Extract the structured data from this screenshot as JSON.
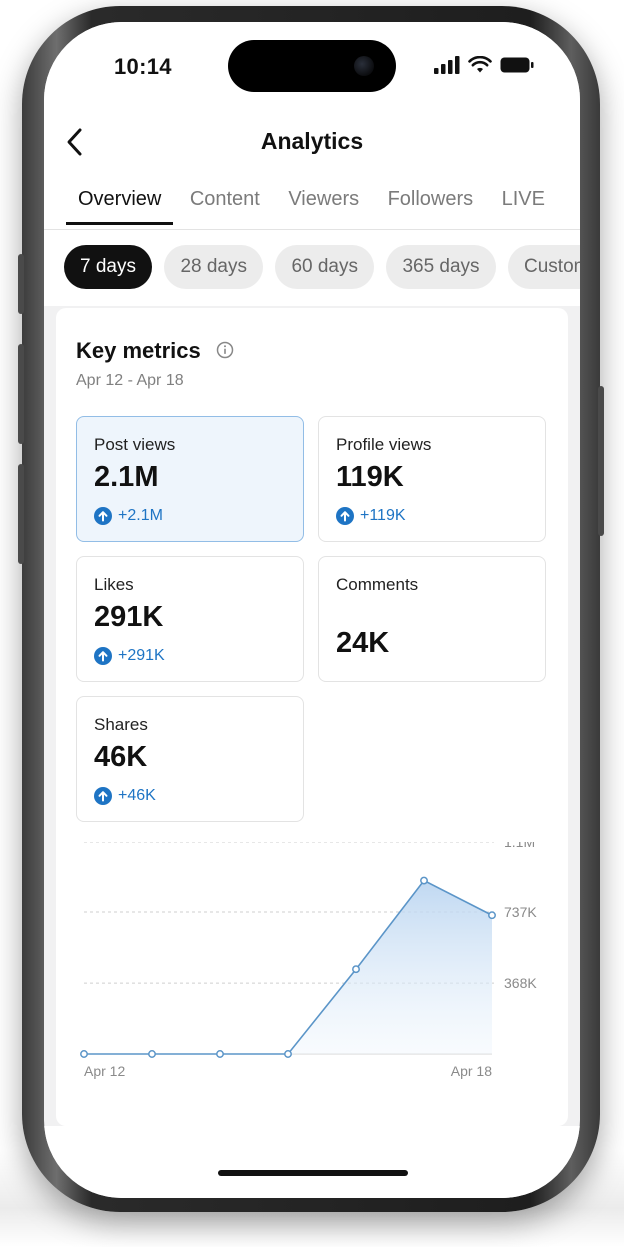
{
  "status": {
    "time": "10:14"
  },
  "header": {
    "title": "Analytics"
  },
  "tabs": [
    {
      "label": "Overview",
      "active": true
    },
    {
      "label": "Content",
      "active": false
    },
    {
      "label": "Viewers",
      "active": false
    },
    {
      "label": "Followers",
      "active": false
    },
    {
      "label": "LIVE",
      "active": false
    }
  ],
  "ranges": [
    {
      "label": "7 days",
      "active": true
    },
    {
      "label": "28 days",
      "active": false
    },
    {
      "label": "60 days",
      "active": false
    },
    {
      "label": "365 days",
      "active": false
    },
    {
      "label": "Custom",
      "active": false
    }
  ],
  "key_metrics": {
    "title": "Key metrics",
    "date_range": "Apr 12 - Apr 18",
    "tiles": [
      {
        "label": "Post views",
        "value": "2.1M",
        "change": "+2.1M"
      },
      {
        "label": "Profile views",
        "value": "119K",
        "change": "+119K"
      },
      {
        "label": "Likes",
        "value": "291K",
        "change": "+291K"
      },
      {
        "label": "Comments",
        "value": "24K",
        "change": ""
      },
      {
        "label": "Shares",
        "value": "46K",
        "change": "+46K"
      }
    ]
  },
  "colors": {
    "accent_blue": "#1e74c4",
    "selected_tile_bg": "#eef5fc",
    "chart_line": "#5b95c8"
  },
  "chart_data": {
    "type": "area",
    "x": [
      "Apr 12",
      "Apr 13",
      "Apr 14",
      "Apr 15",
      "Apr 16",
      "Apr 17",
      "Apr 18"
    ],
    "series": [
      {
        "values": [
          0,
          0,
          0,
          0,
          440000,
          900000,
          720000
        ]
      }
    ],
    "x_tick_labels": [
      "Apr 12",
      "Apr 18"
    ],
    "y_tick_labels": [
      "1.1M",
      "737K",
      "368K"
    ],
    "y_ticks": [
      1100000,
      737000,
      368000
    ],
    "ylim": [
      0,
      1100000
    ],
    "grid": true
  }
}
